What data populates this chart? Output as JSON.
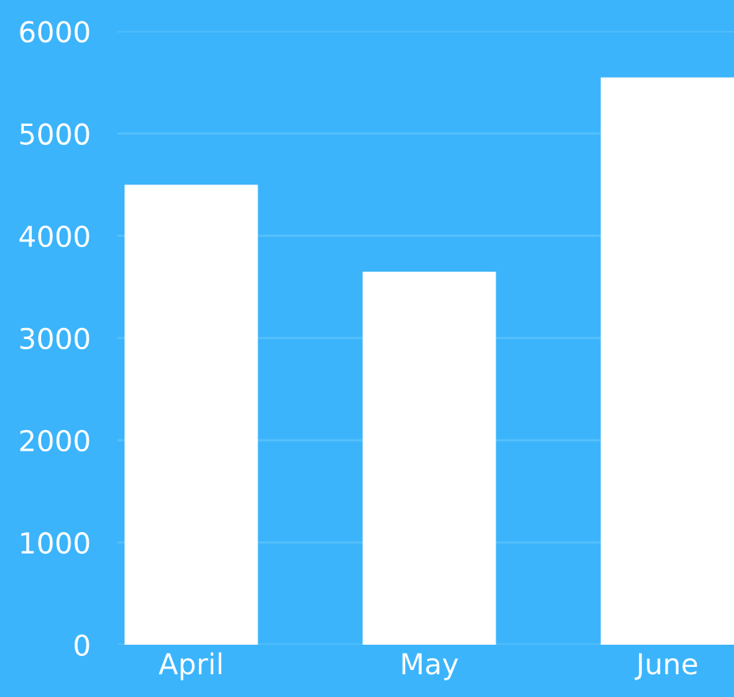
{
  "chart_data": {
    "type": "bar",
    "categories": [
      "April",
      "May",
      "June"
    ],
    "values": [
      4500,
      3650,
      5550
    ],
    "color": "#ffffff",
    "ylim": [
      0,
      6000
    ],
    "yticks": [
      0,
      1000,
      2000,
      3000,
      4000,
      5000,
      6000
    ],
    "grid": "y"
  }
}
